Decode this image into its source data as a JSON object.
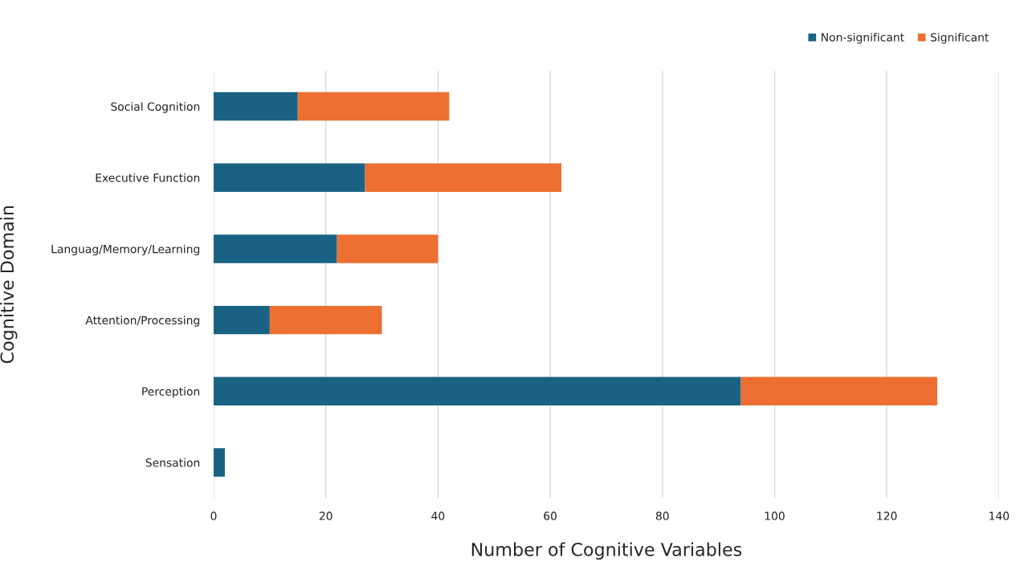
{
  "chart_data": {
    "type": "bar",
    "orientation": "horizontal",
    "stacked": true,
    "xlabel": "Number of Cognitive Variables",
    "ylabel": "Cognitive Domain",
    "categories": [
      "Social Cognition",
      "Executive Function",
      "Languag/Memory/Learning",
      "Attention/Processing",
      "Perception",
      "Sensation"
    ],
    "series": [
      {
        "name": "Non-significant",
        "color": "#1a6283",
        "values": [
          15,
          27,
          22,
          10,
          94,
          2
        ]
      },
      {
        "name": "Significant",
        "color": "#ed6f31",
        "values": [
          27,
          35,
          18,
          20,
          35,
          null
        ]
      }
    ],
    "xlim": [
      0,
      140
    ],
    "xticks": [
      0,
      20,
      40,
      60,
      80,
      100,
      120,
      140
    ],
    "grid": "x",
    "legend": "top right"
  }
}
